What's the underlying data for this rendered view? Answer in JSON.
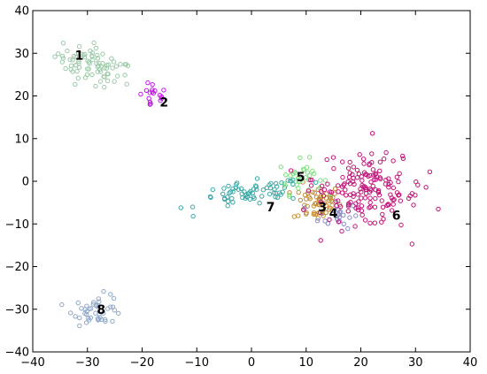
{
  "chart_data": {
    "type": "scatter",
    "title": "",
    "xlabel": "",
    "ylabel": "",
    "xlim": [
      -40,
      40
    ],
    "ylim": [
      -40,
      40
    ],
    "xticks": [
      -40,
      -30,
      -20,
      -10,
      0,
      10,
      20,
      30,
      40
    ],
    "yticks": [
      -40,
      -30,
      -20,
      -10,
      0,
      10,
      20,
      30,
      40
    ],
    "grid": false,
    "marker": "open-circle",
    "clusters": [
      {
        "label": "1",
        "color": "#9cc9a8",
        "center": [
          -29,
          27
        ],
        "label_pos": [
          -31.5,
          29.5
        ],
        "count": 80,
        "spread": [
          3.5,
          2.0
        ],
        "tilt": -0.45
      },
      {
        "label": "2",
        "color": "#c014e6",
        "center": [
          -18,
          20
        ],
        "label_pos": [
          -16,
          18.5
        ],
        "count": 18,
        "spread": [
          1.3,
          1.6
        ],
        "tilt": 0.0
      },
      {
        "label": "3",
        "color": "#c08a30",
        "center": [
          12,
          -5
        ],
        "label_pos": [
          13,
          -6
        ],
        "count": 60,
        "spread": [
          2.2,
          2.2
        ],
        "tilt": 0.0
      },
      {
        "label": "4",
        "color": "#8a8ac8",
        "center": [
          16,
          -8
        ],
        "label_pos": [
          15,
          -7.5
        ],
        "count": 20,
        "spread": [
          1.8,
          1.5
        ],
        "tilt": 0.0
      },
      {
        "label": "5",
        "color": "#7de07d",
        "center": [
          9,
          1
        ],
        "label_pos": [
          9,
          1
        ],
        "count": 35,
        "spread": [
          2.0,
          2.0
        ],
        "tilt": 0.0
      },
      {
        "label": "6",
        "color": "#c0147a",
        "center": [
          21,
          -2
        ],
        "label_pos": [
          26.5,
          -8
        ],
        "count": 170,
        "spread": [
          5.0,
          4.0
        ],
        "tilt": -0.25
      },
      {
        "label": "7",
        "color": "#3aa8a8",
        "center": [
          0,
          -3
        ],
        "label_pos": [
          3.5,
          -6
        ],
        "count": 70,
        "spread": [
          5.0,
          1.4
        ],
        "tilt": 0.15
      },
      {
        "label": "8",
        "color": "#8fa8c8",
        "center": [
          -28,
          -30
        ],
        "label_pos": [
          -27.5,
          -30
        ],
        "count": 45,
        "spread": [
          2.3,
          1.7
        ],
        "tilt": 0.1
      }
    ]
  }
}
